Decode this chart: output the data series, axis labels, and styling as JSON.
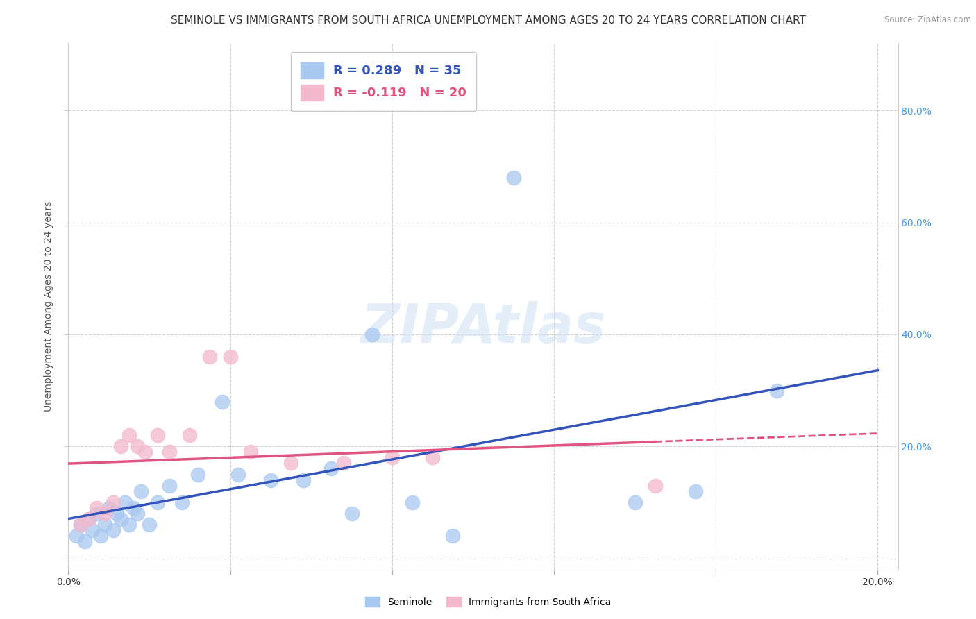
{
  "title": "SEMINOLE VS IMMIGRANTS FROM SOUTH AFRICA UNEMPLOYMENT AMONG AGES 20 TO 24 YEARS CORRELATION CHART",
  "source": "Source: ZipAtlas.com",
  "ylabel": "Unemployment Among Ages 20 to 24 years",
  "xlim": [
    0.0,
    0.205
  ],
  "ylim": [
    -0.02,
    0.92
  ],
  "xticks": [
    0.0,
    0.04,
    0.08,
    0.12,
    0.16,
    0.2
  ],
  "xticklabels": [
    "0.0%",
    "",
    "",
    "",
    "",
    "20.0%"
  ],
  "yticks": [
    0.0,
    0.2,
    0.4,
    0.6,
    0.8
  ],
  "yticklabels": [
    "",
    "20.0%",
    "40.0%",
    "60.0%",
    "80.0%"
  ],
  "seminole_x": [
    0.002,
    0.003,
    0.004,
    0.005,
    0.006,
    0.007,
    0.008,
    0.009,
    0.01,
    0.011,
    0.012,
    0.013,
    0.014,
    0.015,
    0.016,
    0.017,
    0.018,
    0.02,
    0.022,
    0.025,
    0.028,
    0.032,
    0.038,
    0.042,
    0.05,
    0.058,
    0.065,
    0.07,
    0.075,
    0.085,
    0.095,
    0.11,
    0.14,
    0.155,
    0.175
  ],
  "seminole_y": [
    0.04,
    0.06,
    0.03,
    0.07,
    0.05,
    0.08,
    0.04,
    0.06,
    0.09,
    0.05,
    0.08,
    0.07,
    0.1,
    0.06,
    0.09,
    0.08,
    0.12,
    0.06,
    0.1,
    0.13,
    0.1,
    0.15,
    0.28,
    0.15,
    0.14,
    0.14,
    0.16,
    0.08,
    0.4,
    0.1,
    0.04,
    0.68,
    0.1,
    0.12,
    0.3
  ],
  "immigrants_x": [
    0.003,
    0.005,
    0.007,
    0.009,
    0.011,
    0.013,
    0.015,
    0.017,
    0.019,
    0.022,
    0.025,
    0.03,
    0.035,
    0.04,
    0.045,
    0.055,
    0.068,
    0.08,
    0.09,
    0.145
  ],
  "immigrants_y": [
    0.06,
    0.07,
    0.09,
    0.08,
    0.1,
    0.2,
    0.22,
    0.2,
    0.19,
    0.22,
    0.19,
    0.22,
    0.36,
    0.36,
    0.19,
    0.17,
    0.17,
    0.18,
    0.18,
    0.13
  ],
  "seminole_color": "#a8c8f0",
  "immigrants_color": "#f4b8cc",
  "trendline_seminole_color": "#3355bb",
  "trendline_immigrants_color": "#e05580",
  "R_seminole": 0.289,
  "N_seminole": 35,
  "R_immigrants": -0.119,
  "N_immigrants": 20,
  "background_color": "#ffffff",
  "grid_color": "#cccccc",
  "watermark_text": "ZIPAtlas",
  "title_fontsize": 11,
  "axis_label_fontsize": 10,
  "tick_fontsize": 10,
  "legend_fontsize": 13
}
